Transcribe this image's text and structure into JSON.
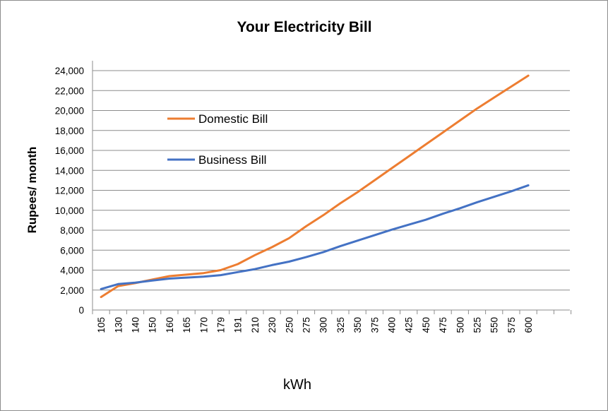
{
  "chart_data": {
    "type": "line",
    "title": "Your Electricity Bill",
    "xlabel": "kWh",
    "ylabel": "Rupees/ month",
    "categories": [
      "105",
      "130",
      "140",
      "150",
      "160",
      "165",
      "170",
      "179",
      "191",
      "210",
      "230",
      "250",
      "275",
      "300",
      "325",
      "350",
      "375",
      "400",
      "425",
      "450",
      "475",
      "500",
      "525",
      "550",
      "575",
      "600"
    ],
    "ylim": [
      0,
      24000
    ],
    "yticks": [
      0,
      2000,
      4000,
      6000,
      8000,
      10000,
      12000,
      14000,
      16000,
      18000,
      20000,
      22000,
      24000
    ],
    "ytick_labels": [
      "0",
      "2,000",
      "4,000",
      "6,000",
      "8,000",
      "10,000",
      "12,000",
      "14,000",
      "16,000",
      "18,000",
      "20,000",
      "22,000",
      "24,000"
    ],
    "grid": true,
    "legend_placement": "upper-left inside plot",
    "series": [
      {
        "name": "Domestic Bill",
        "color": "#ED7D31",
        "values": [
          1300,
          2400,
          2700,
          3050,
          3400,
          3550,
          3700,
          4000,
          4600,
          5500,
          6300,
          7200,
          8400,
          9500,
          10700,
          11800,
          13000,
          14200,
          15400,
          16600,
          17800,
          19000,
          20200,
          21300,
          22400,
          23500
        ]
      },
      {
        "name": "Business Bill",
        "color": "#4472C4",
        "values": [
          2100,
          2600,
          2750,
          2950,
          3150,
          3250,
          3350,
          3500,
          3800,
          4100,
          4500,
          4850,
          5300,
          5800,
          6400,
          6950,
          7500,
          8050,
          8550,
          9050,
          9650,
          10200,
          10800,
          11350,
          11900,
          12500
        ]
      }
    ]
  }
}
